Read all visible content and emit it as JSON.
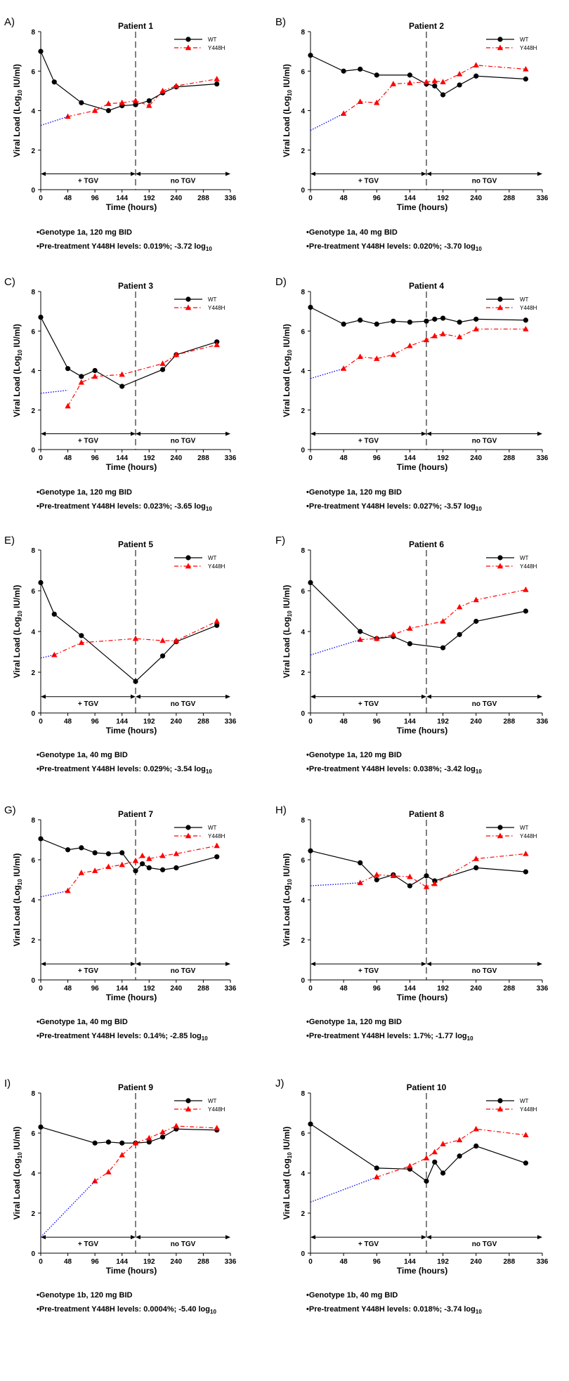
{
  "figure": {
    "xlabel": "Time (hours)",
    "ylabel_prefix": "Viral Load (Log",
    "ylabel_sub": "10",
    "ylabel_suffix": " IU/ml)",
    "legend": [
      "WT",
      "Y448H"
    ],
    "on_treatment_label": "+ TGV",
    "off_treatment_label": "no TGV",
    "x_ticks": [
      0,
      48,
      96,
      144,
      192,
      240,
      288,
      336
    ],
    "y_ticks": [
      0,
      2,
      4,
      6,
      8
    ],
    "xlim": [
      0,
      336
    ],
    "ylim": [
      0,
      8
    ],
    "treatment_stop_hour": 168,
    "colors": {
      "wt": "#000000",
      "y448h": "#ff0000",
      "extrapolation": "#0000ff"
    }
  },
  "chart_data": [
    {
      "type": "line",
      "panel": "A)",
      "title": "Patient 1",
      "genotype_text": "•Genotype 1a, 120 mg BID",
      "pretreatment_text": "•Pre-treatment Y448H levels: 0.019%; -3.72 log",
      "pretreatment_sub": "10",
      "series": [
        {
          "name": "WT",
          "x": [
            0,
            24,
            72,
            120,
            144,
            168,
            192,
            216,
            240,
            312
          ],
          "values": [
            7.0,
            5.45,
            4.4,
            4.0,
            4.25,
            4.3,
            4.5,
            4.9,
            5.2,
            5.35
          ]
        },
        {
          "name": "Y448H",
          "x": [
            48,
            96,
            120,
            144,
            168,
            192,
            216,
            240,
            312
          ],
          "values": [
            3.7,
            4.0,
            4.35,
            4.4,
            4.5,
            4.25,
            5.0,
            5.25,
            5.6
          ]
        },
        {
          "name": "Y448H extrapolation",
          "x": [
            0,
            48
          ],
          "values": [
            3.25,
            3.7
          ]
        }
      ]
    },
    {
      "type": "line",
      "panel": "B)",
      "title": "Patient 2",
      "genotype_text": "•Genotype 1a, 40 mg BID",
      "pretreatment_text": "•Pre-treatment Y448H levels: 0.020%; -3.70 log",
      "pretreatment_sub": "10",
      "series": [
        {
          "name": "WT",
          "x": [
            0,
            48,
            72,
            96,
            144,
            168,
            180,
            192,
            216,
            240,
            312
          ],
          "values": [
            6.8,
            6.0,
            6.1,
            5.8,
            5.8,
            5.35,
            5.25,
            4.8,
            5.3,
            5.75,
            5.6
          ]
        },
        {
          "name": "Y448H",
          "x": [
            48,
            72,
            96,
            120,
            144,
            168,
            180,
            192,
            216,
            240,
            312
          ],
          "values": [
            3.85,
            4.45,
            4.4,
            5.35,
            5.4,
            5.45,
            5.5,
            5.45,
            5.85,
            6.3,
            6.1
          ]
        },
        {
          "name": "Y448H extrapolation",
          "x": [
            0,
            48
          ],
          "values": [
            3.0,
            3.85
          ]
        }
      ]
    },
    {
      "type": "line",
      "panel": "C)",
      "title": "Patient 3",
      "genotype_text": "•Genotype 1a, 120 mg BID",
      "pretreatment_text": "•Pre-treatment Y448H levels: 0.023%; -3.65 log",
      "pretreatment_sub": "10",
      "series": [
        {
          "name": "WT",
          "x": [
            0,
            48,
            72,
            96,
            144,
            216,
            240,
            312
          ],
          "values": [
            6.7,
            4.1,
            3.7,
            4.0,
            3.2,
            4.05,
            4.8,
            5.45
          ]
        },
        {
          "name": "Y448H",
          "x": [
            48,
            72,
            96,
            144,
            216,
            240,
            312
          ],
          "values": [
            2.2,
            3.4,
            3.7,
            3.8,
            4.35,
            4.8,
            5.3
          ]
        },
        {
          "name": "Y448H extrapolation",
          "x": [
            0,
            48
          ],
          "values": [
            2.85,
            3.0
          ]
        }
      ]
    },
    {
      "type": "line",
      "panel": "D)",
      "title": "Patient 4",
      "genotype_text": "•Genotype 1a, 120 mg BID",
      "pretreatment_text": "•Pre-treatment Y448H levels: 0.027%; -3.57 log",
      "pretreatment_sub": "10",
      "series": [
        {
          "name": "WT",
          "x": [
            0,
            48,
            72,
            96,
            120,
            144,
            168,
            180,
            192,
            216,
            240,
            312
          ],
          "values": [
            7.2,
            6.35,
            6.55,
            6.35,
            6.5,
            6.45,
            6.5,
            6.6,
            6.65,
            6.45,
            6.6,
            6.55
          ]
        },
        {
          "name": "Y448H",
          "x": [
            48,
            72,
            96,
            120,
            144,
            168,
            180,
            192,
            216,
            240,
            312
          ],
          "values": [
            4.1,
            4.7,
            4.6,
            4.8,
            5.25,
            5.55,
            5.75,
            5.85,
            5.7,
            6.1,
            6.1
          ]
        },
        {
          "name": "Y448H extrapolation",
          "x": [
            0,
            48
          ],
          "values": [
            3.6,
            4.1
          ]
        }
      ]
    },
    {
      "type": "line",
      "panel": "E)",
      "title": "Patient 5",
      "genotype_text": "•Genotype 1a, 40 mg BID",
      "pretreatment_text": "•Pre-treatment Y448H levels: 0.029%; -3.54 log",
      "pretreatment_sub": "10",
      "series": [
        {
          "name": "WT",
          "x": [
            0,
            24,
            72,
            168,
            216,
            240,
            312
          ],
          "values": [
            6.4,
            4.85,
            3.8,
            1.55,
            2.8,
            3.5,
            4.3
          ]
        },
        {
          "name": "Y448H",
          "x": [
            24,
            72,
            168,
            216,
            240,
            312
          ],
          "values": [
            2.85,
            3.45,
            3.65,
            3.55,
            3.55,
            4.5
          ]
        },
        {
          "name": "Y448H extrapolation",
          "x": [
            0,
            24
          ],
          "values": [
            2.7,
            2.85
          ]
        }
      ]
    },
    {
      "type": "line",
      "panel": "F)",
      "title": "Patient 6",
      "genotype_text": "•Genotype 1a, 120 mg BID",
      "pretreatment_text": "•Pre-treatment Y448H levels: 0.038%; -3.42 log",
      "pretreatment_sub": "10",
      "series": [
        {
          "name": "WT",
          "x": [
            0,
            72,
            96,
            120,
            144,
            192,
            216,
            240,
            312
          ],
          "values": [
            6.4,
            4.0,
            3.65,
            3.75,
            3.4,
            3.2,
            3.85,
            4.5,
            5.0
          ]
        },
        {
          "name": "Y448H",
          "x": [
            72,
            96,
            120,
            144,
            192,
            216,
            240,
            312
          ],
          "values": [
            3.6,
            3.65,
            3.85,
            4.15,
            4.5,
            5.2,
            5.55,
            6.05
          ]
        },
        {
          "name": "Y448H extrapolation",
          "x": [
            0,
            72
          ],
          "values": [
            2.85,
            3.6
          ]
        }
      ]
    },
    {
      "type": "line",
      "panel": "G)",
      "title": "Patient 7",
      "genotype_text": "•Genotype 1a, 40 mg BID",
      "pretreatment_text": "•Pre-treatment Y448H levels: 0.14%; -2.85 log",
      "pretreatment_sub": "10",
      "series": [
        {
          "name": "WT",
          "x": [
            0,
            48,
            72,
            96,
            120,
            144,
            168,
            180,
            192,
            216,
            240,
            312
          ],
          "values": [
            7.05,
            6.5,
            6.6,
            6.35,
            6.3,
            6.35,
            5.45,
            5.8,
            5.6,
            5.5,
            5.6,
            6.15
          ]
        },
        {
          "name": "Y448H",
          "x": [
            48,
            72,
            96,
            120,
            144,
            168,
            180,
            192,
            216,
            240,
            312
          ],
          "values": [
            4.45,
            5.35,
            5.45,
            5.65,
            5.75,
            5.95,
            6.2,
            6.05,
            6.2,
            6.3,
            6.7
          ]
        },
        {
          "name": "Y448H extrapolation",
          "x": [
            0,
            48
          ],
          "values": [
            4.15,
            4.45
          ]
        }
      ]
    },
    {
      "type": "line",
      "panel": "H)",
      "title": "Patient 8",
      "genotype_text": "•Genotype 1a, 120 mg BID",
      "pretreatment_text": "•Pre-treatment Y448H levels: 1.7%; -1.77 log",
      "pretreatment_sub": "10",
      "series": [
        {
          "name": "WT",
          "x": [
            0,
            72,
            96,
            120,
            144,
            168,
            180,
            240,
            312
          ],
          "values": [
            6.45,
            5.85,
            5.0,
            5.25,
            4.7,
            5.2,
            4.95,
            5.6,
            5.4
          ]
        },
        {
          "name": "Y448H",
          "x": [
            72,
            96,
            120,
            144,
            168,
            180,
            240,
            312
          ],
          "values": [
            4.85,
            5.25,
            5.2,
            5.15,
            4.65,
            4.8,
            6.05,
            6.3
          ]
        },
        {
          "name": "Y448H extrapolation",
          "x": [
            0,
            72
          ],
          "values": [
            4.7,
            4.85
          ]
        }
      ]
    },
    {
      "type": "line",
      "panel": "I)",
      "title": "Patient 9",
      "genotype_text": "•Genotype 1b, 120 mg BID",
      "pretreatment_text": "•Pre-treatment Y448H levels: 0.0004%; -5.40 log",
      "pretreatment_sub": "10",
      "series": [
        {
          "name": "WT",
          "x": [
            0,
            96,
            120,
            144,
            168,
            192,
            216,
            240,
            312
          ],
          "values": [
            6.3,
            5.5,
            5.55,
            5.5,
            5.5,
            5.55,
            5.8,
            6.2,
            6.15
          ]
        },
        {
          "name": "Y448H",
          "x": [
            96,
            120,
            144,
            168,
            192,
            216,
            240,
            312
          ],
          "values": [
            3.6,
            4.05,
            4.9,
            5.5,
            5.75,
            6.05,
            6.35,
            6.25
          ]
        },
        {
          "name": "Y448H extrapolation",
          "x": [
            0,
            96
          ],
          "values": [
            0.8,
            3.6
          ]
        }
      ]
    },
    {
      "type": "line",
      "panel": "J)",
      "title": "Patient 10",
      "genotype_text": "•Genotype 1b, 40 mg BID",
      "pretreatment_text": "•Pre-treatment Y448H levels: 0.018%; -3.74 log",
      "pretreatment_sub": "10",
      "series": [
        {
          "name": "WT",
          "x": [
            0,
            96,
            144,
            168,
            180,
            192,
            216,
            240,
            312
          ],
          "values": [
            6.45,
            4.25,
            4.2,
            3.6,
            4.55,
            4.0,
            4.85,
            5.35,
            4.5
          ]
        },
        {
          "name": "Y448H",
          "x": [
            96,
            144,
            168,
            180,
            192,
            216,
            240,
            312
          ],
          "values": [
            3.8,
            4.35,
            4.75,
            5.05,
            5.45,
            5.65,
            6.2,
            5.9
          ]
        },
        {
          "name": "Y448H extrapolation",
          "x": [
            0,
            96
          ],
          "values": [
            2.55,
            3.8
          ]
        }
      ]
    }
  ]
}
